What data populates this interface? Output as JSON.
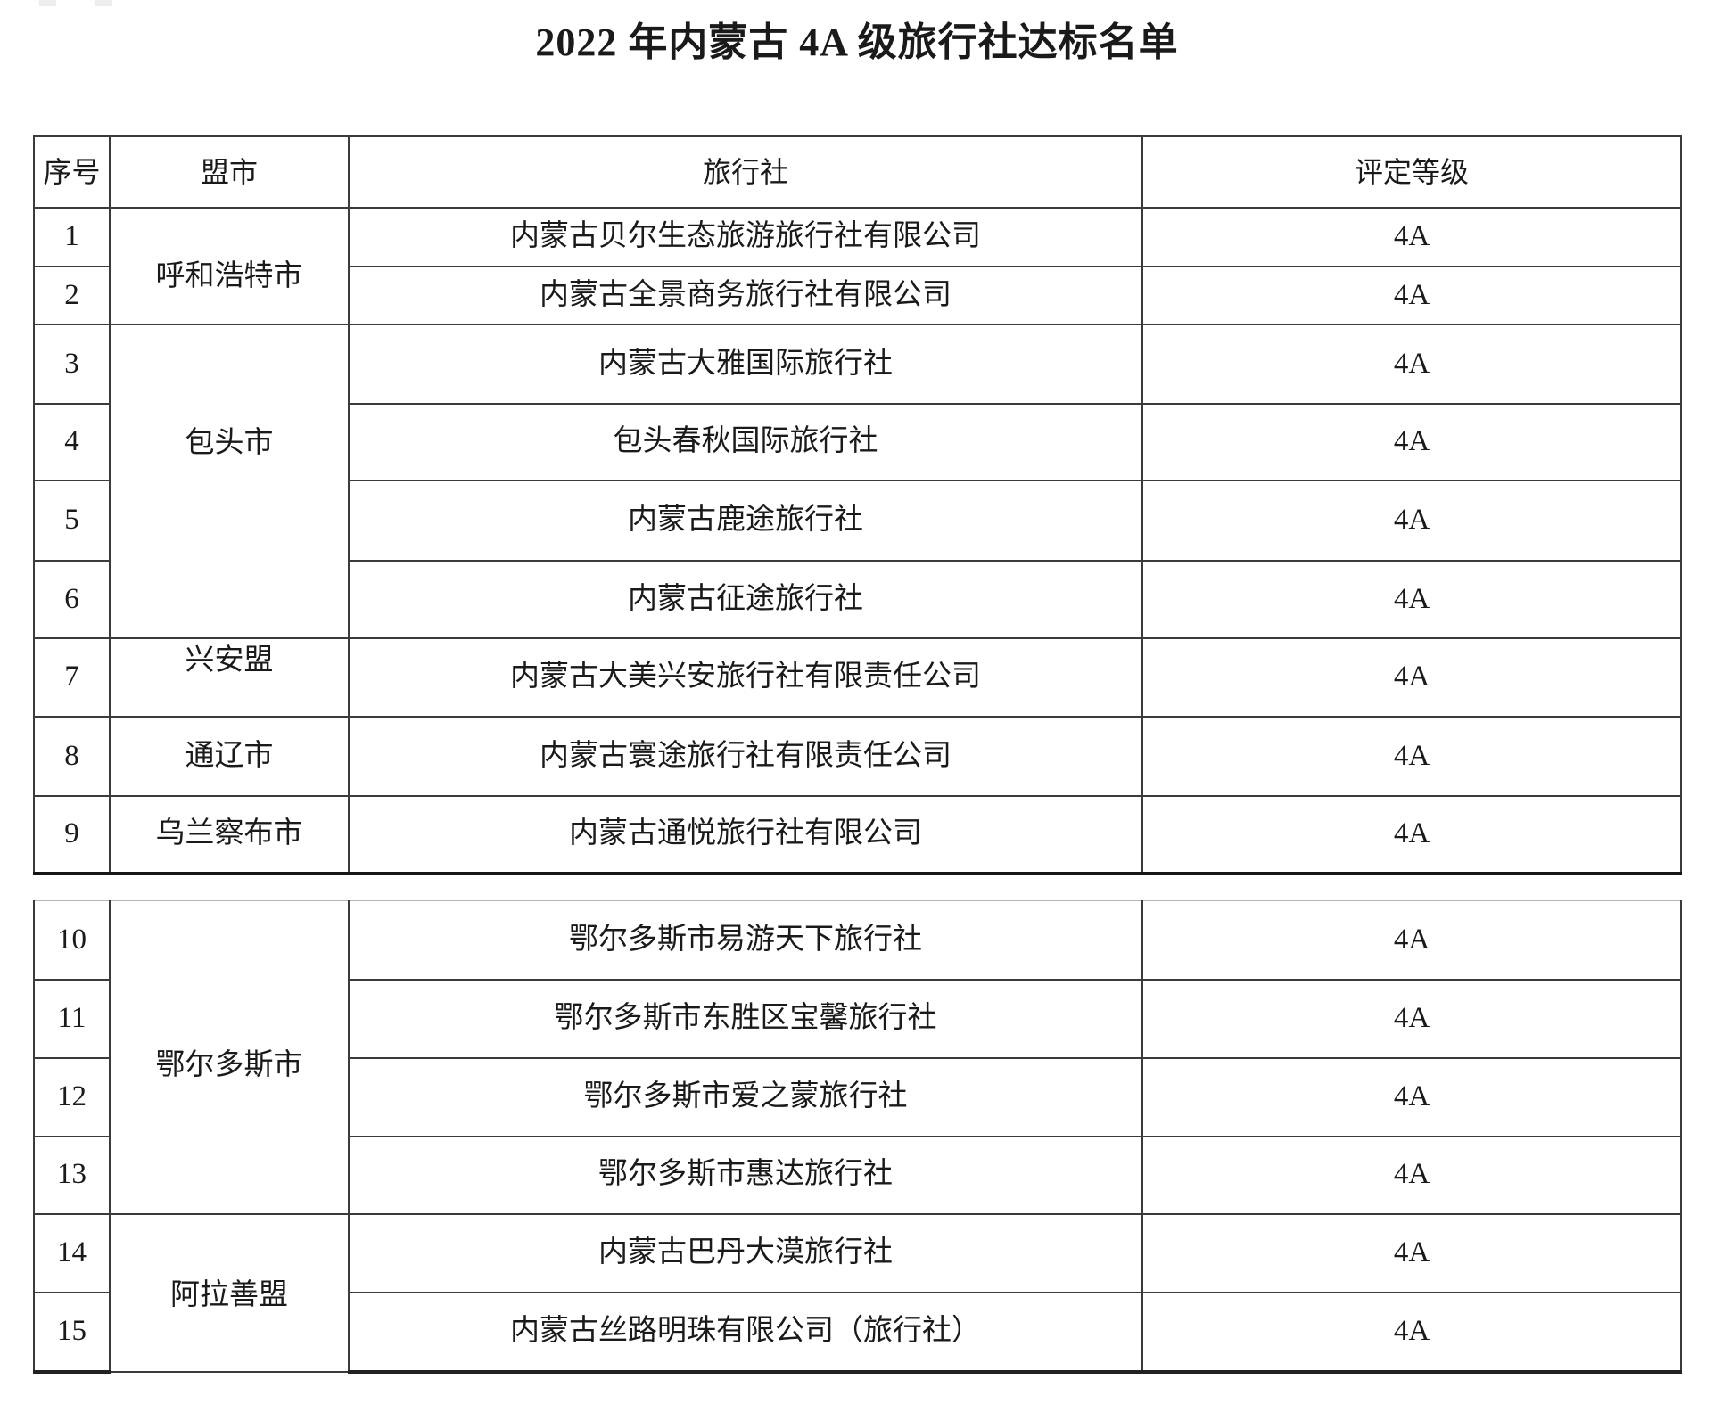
{
  "page": {
    "title": "2022 年内蒙古 4A 级旅行社达标名单"
  },
  "tables": {
    "top": {
      "headers": [
        "序号",
        "盟市",
        "旅行社",
        "评定等级"
      ],
      "rows": [
        {
          "no": "1",
          "city": "呼和浩特市",
          "city_span": 2,
          "agency": "内蒙古贝尔生态旅游旅行社有限公司",
          "rating": "4A"
        },
        {
          "no": "2",
          "agency": "内蒙古全景商务旅行社有限公司",
          "rating": "4A"
        },
        {
          "no": "3",
          "city": "包头市",
          "city_span": 4,
          "agency": "内蒙古大雅国际旅行社",
          "rating": "4A"
        },
        {
          "no": "4",
          "agency": "包头春秋国际旅行社",
          "rating": "4A"
        },
        {
          "no": "5",
          "agency": "内蒙古鹿途旅行社",
          "rating": "4A"
        },
        {
          "no": "6",
          "agency": "内蒙古征途旅行社",
          "rating": "4A"
        },
        {
          "no": "7",
          "city": "兴安盟",
          "city_span": 1,
          "agency": "内蒙古大美兴安旅行社有限责任公司",
          "rating": "4A"
        },
        {
          "no": "8",
          "city": "通辽市",
          "city_span": 1,
          "agency": "内蒙古寰途旅行社有限责任公司",
          "rating": "4A"
        },
        {
          "no": "9",
          "city": "乌兰察布市",
          "city_span": 1,
          "agency": "内蒙古通悦旅行社有限公司",
          "rating": "4A"
        }
      ]
    },
    "bottom": {
      "rows": [
        {
          "no": "10",
          "city": "鄂尔多斯市",
          "city_span": 4,
          "agency": "鄂尔多斯市易游天下旅行社",
          "rating": "4A"
        },
        {
          "no": "11",
          "agency": "鄂尔多斯市东胜区宝馨旅行社",
          "rating": "4A"
        },
        {
          "no": "12",
          "agency": "鄂尔多斯市爱之蒙旅行社",
          "rating": "4A"
        },
        {
          "no": "13",
          "agency": "鄂尔多斯市惠达旅行社",
          "rating": "4A"
        },
        {
          "no": "14",
          "city": "阿拉善盟",
          "city_span": 2,
          "agency": "内蒙古巴丹大漠旅行社",
          "rating": "4A"
        },
        {
          "no": "15",
          "agency": "内蒙古丝路明珠有限公司（旅行社）",
          "rating": "4A"
        }
      ]
    }
  }
}
